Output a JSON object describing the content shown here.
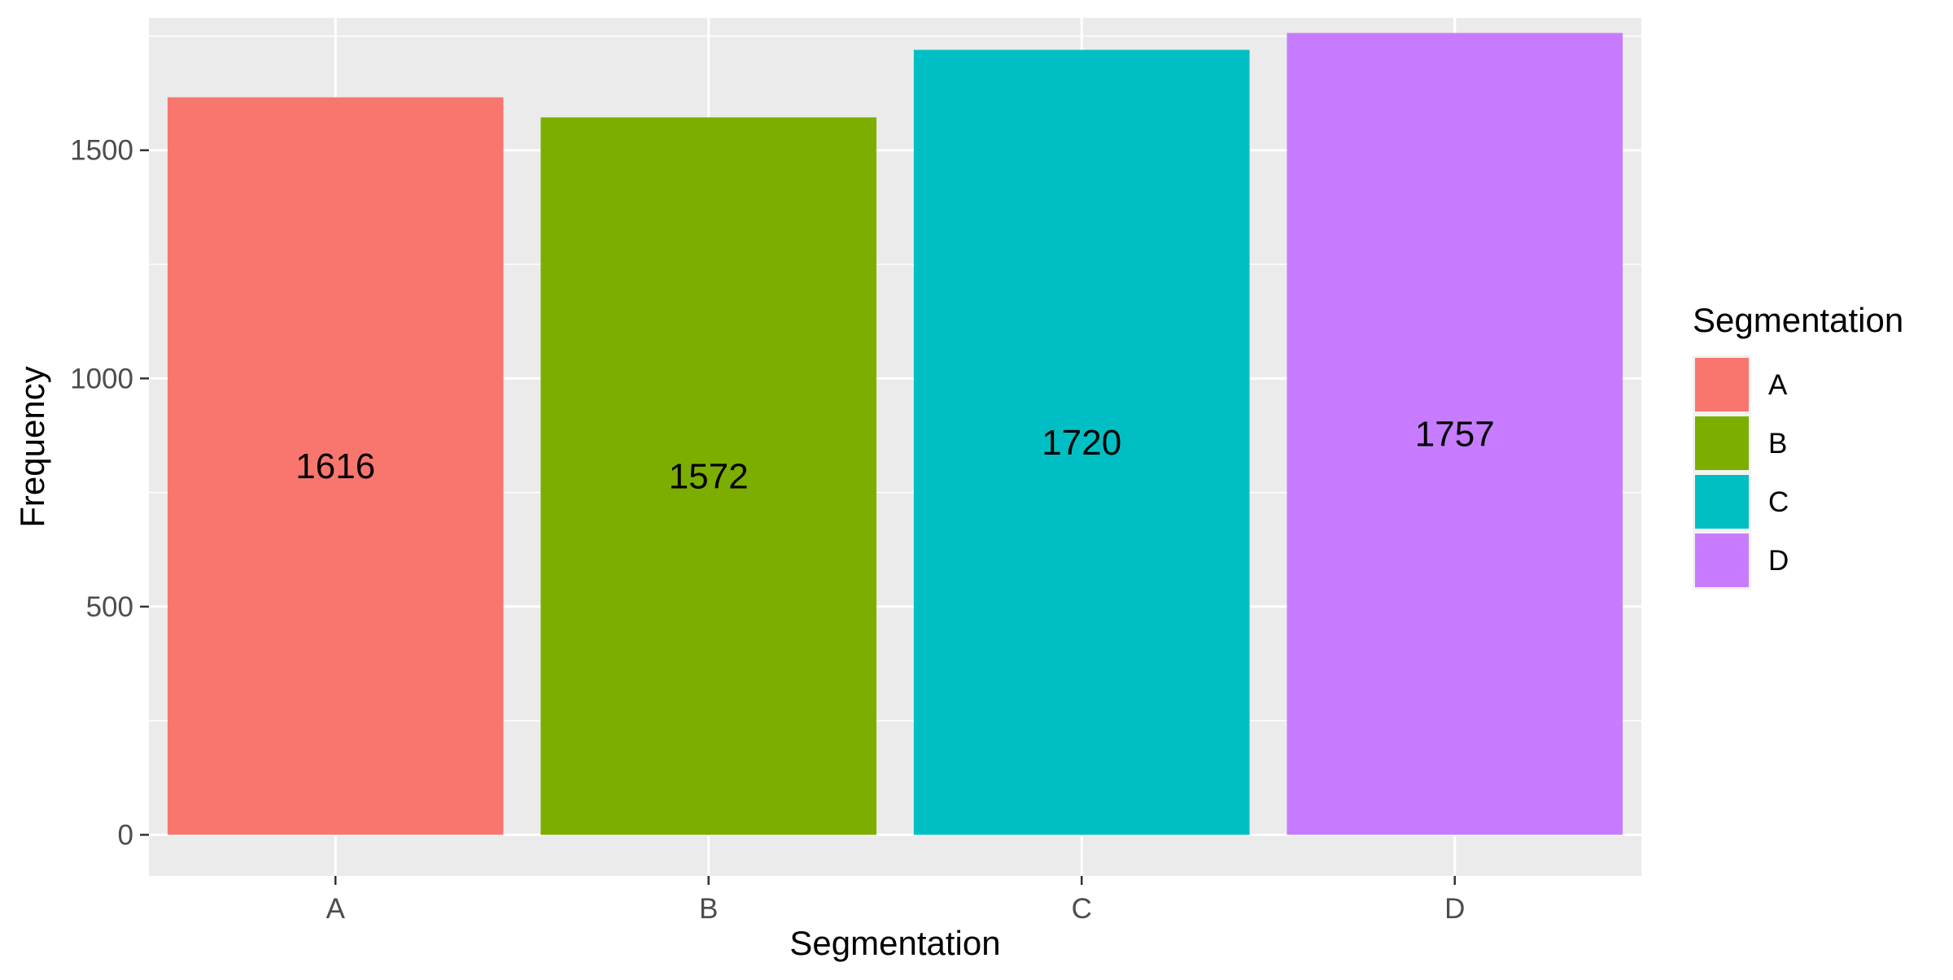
{
  "chart_data": {
    "type": "bar",
    "title": "",
    "xlabel": "Segmentation",
    "ylabel": "Frequency",
    "categories": [
      "A",
      "B",
      "C",
      "D"
    ],
    "values": [
      1616,
      1572,
      1720,
      1757
    ],
    "data_labels": [
      "1616",
      "1572",
      "1720",
      "1757"
    ],
    "colors": [
      "#F8766D",
      "#7CAE00",
      "#00BFC4",
      "#C77CFF"
    ],
    "ylim": [
      -90,
      1790
    ],
    "y_ticks": [
      0,
      500,
      1000,
      1500
    ],
    "y_tick_labels": [
      "0",
      "500",
      "1000",
      "1500"
    ],
    "y_minor_ticks": [
      250,
      750,
      1250,
      1750
    ],
    "grid": true,
    "panel_background": "#EBEBEB",
    "gridline_color": "#FFFFFF",
    "legend": {
      "title": "Segmentation",
      "position": "right",
      "entries": [
        "A",
        "B",
        "C",
        "D"
      ]
    }
  }
}
